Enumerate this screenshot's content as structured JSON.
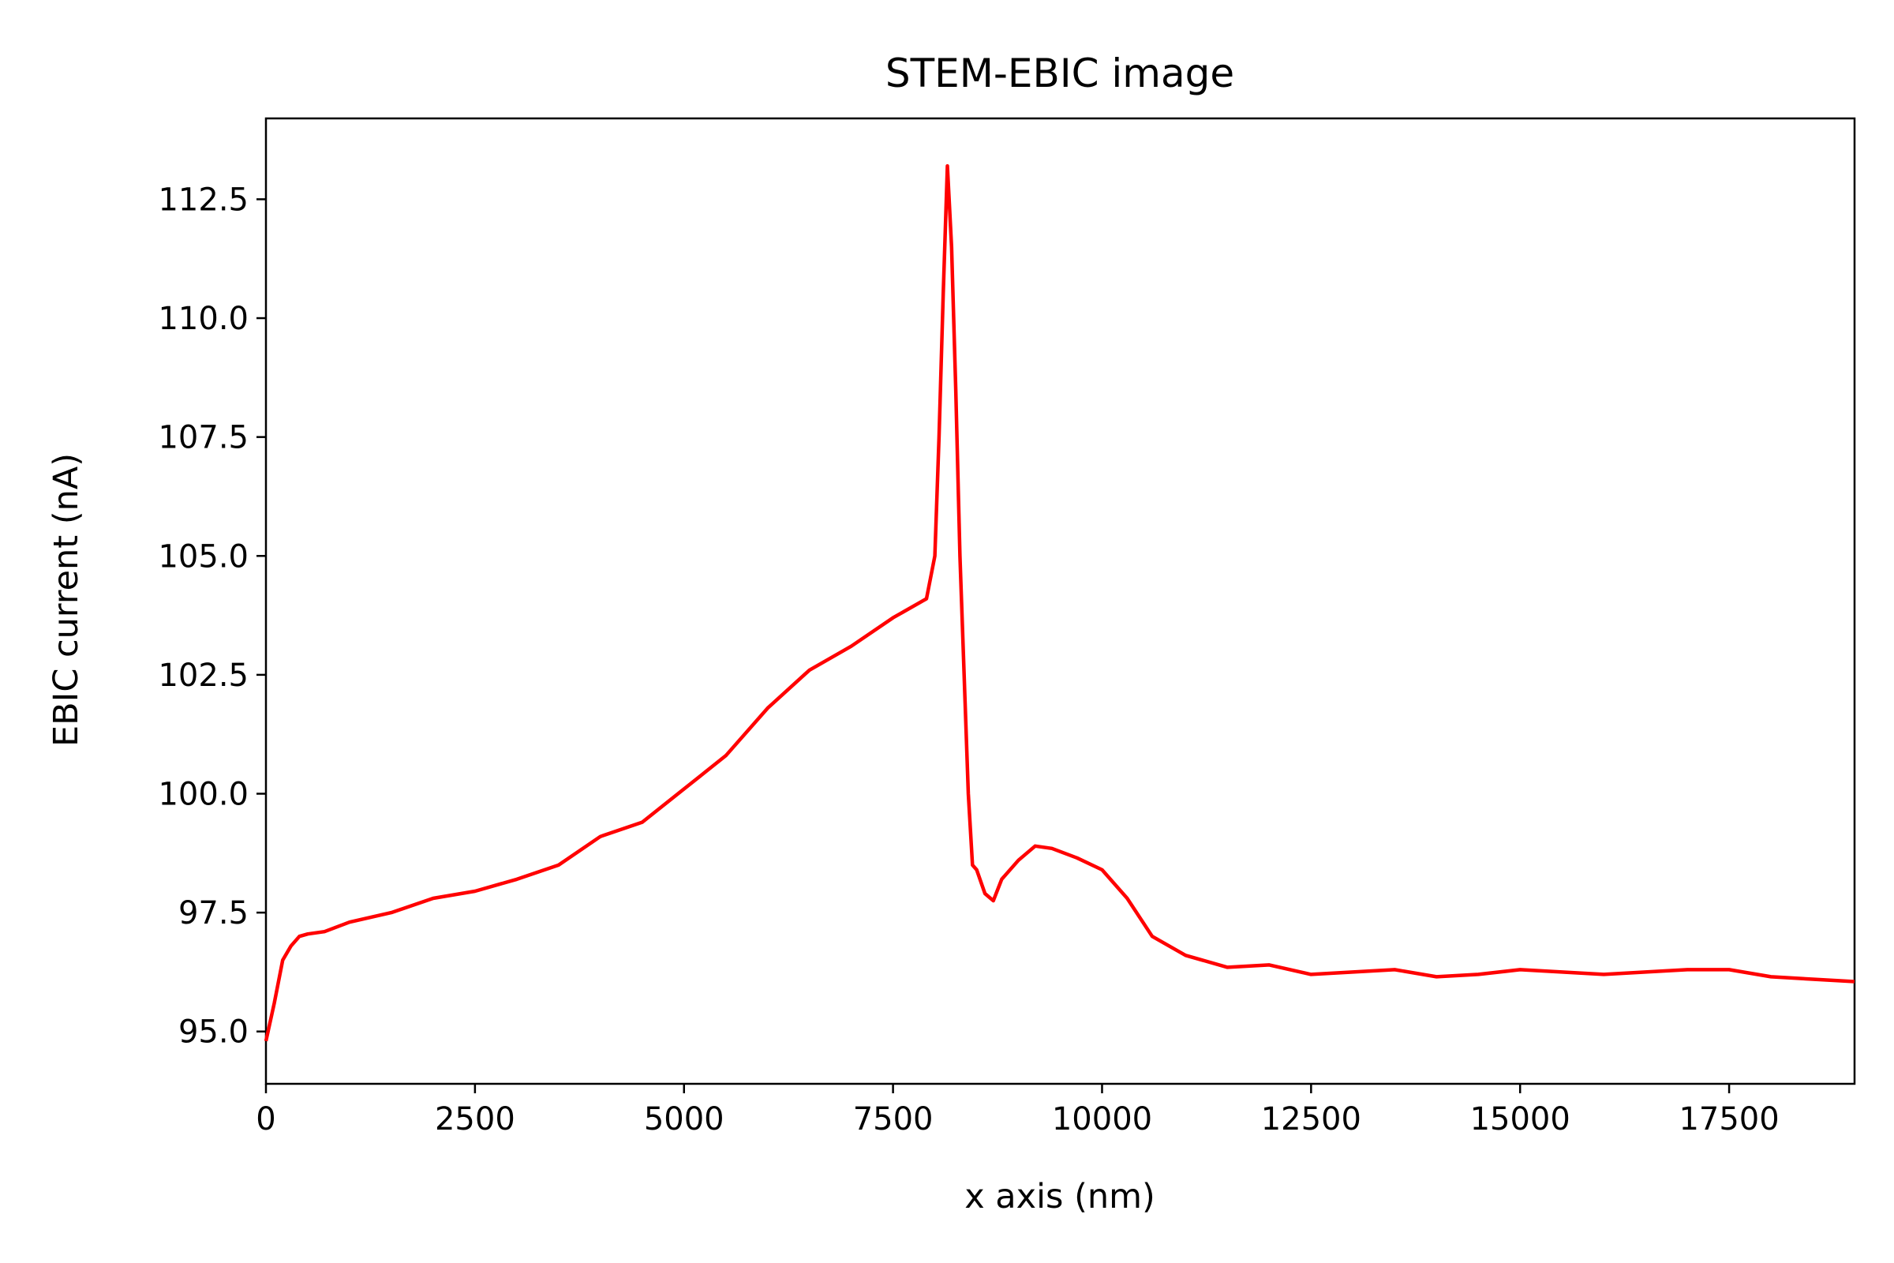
{
  "chart_data": {
    "type": "line",
    "title": "STEM-EBIC image",
    "xlabel": "x axis (nm)",
    "ylabel": "EBIC current (nA)",
    "xlim": [
      0,
      19000
    ],
    "ylim": [
      93.9,
      114.2
    ],
    "xticks": [
      0,
      2500,
      5000,
      7500,
      10000,
      12500,
      15000,
      17500
    ],
    "xtick_labels": [
      "0",
      "2500",
      "5000",
      "7500",
      "10000",
      "12500",
      "15000",
      "17500"
    ],
    "yticks": [
      95.0,
      97.5,
      100.0,
      102.5,
      105.0,
      107.5,
      110.0,
      112.5
    ],
    "ytick_labels": [
      "95.0",
      "97.5",
      "100.0",
      "102.5",
      "105.0",
      "107.5",
      "110.0",
      "112.5"
    ],
    "grid": false,
    "line_color": "#ff0000",
    "series": [
      {
        "x": [
          0,
          100,
          200,
          300,
          400,
          500,
          700,
          1000,
          1500,
          2000,
          2500,
          3000,
          3500,
          4000,
          4500,
          5000,
          5500,
          6000,
          6500,
          7000,
          7500,
          7900,
          8000,
          8050,
          8100,
          8150,
          8200,
          8250,
          8300,
          8350,
          8400,
          8450,
          8500,
          8600,
          8700,
          8800,
          9000,
          9200,
          9400,
          9700,
          10000,
          10300,
          10600,
          11000,
          11500,
          12000,
          12500,
          13000,
          13500,
          14000,
          14500,
          15000,
          15500,
          16000,
          16500,
          17000,
          17500,
          18000,
          18500,
          19000
        ],
        "y": [
          94.8,
          95.6,
          96.5,
          96.8,
          97.0,
          97.05,
          97.1,
          97.3,
          97.5,
          97.8,
          97.95,
          98.2,
          98.5,
          99.1,
          99.4,
          100.1,
          100.8,
          101.8,
          102.6,
          103.1,
          103.7,
          104.1,
          105.0,
          107.5,
          110.5,
          113.2,
          111.5,
          108.5,
          105.0,
          102.5,
          100.0,
          98.5,
          98.4,
          97.9,
          97.75,
          98.2,
          98.6,
          98.9,
          98.85,
          98.65,
          98.4,
          97.8,
          97.0,
          96.6,
          96.35,
          96.4,
          96.2,
          96.25,
          96.3,
          96.15,
          96.2,
          96.3,
          96.25,
          96.2,
          96.25,
          96.3,
          96.3,
          96.15,
          96.1,
          96.05
        ]
      }
    ]
  }
}
